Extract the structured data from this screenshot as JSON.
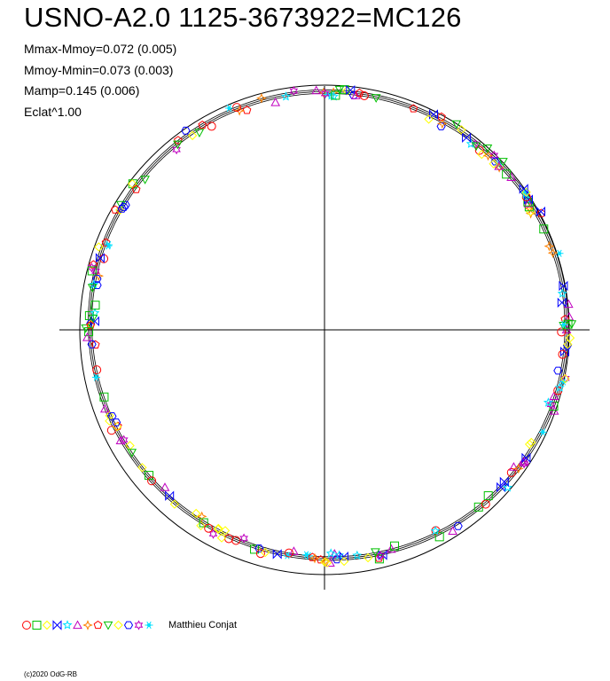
{
  "header": {
    "title": "USNO-A2.0 1125-3673922=MC126",
    "stats": [
      "Mmax-Mmoy=0.072 (0.005)",
      "Mmoy-Mmin=0.073 (0.003)",
      "Mamp=0.145 (0.006)",
      "Eclat^1.00"
    ]
  },
  "chart_data": {
    "type": "scatter",
    "polar": true,
    "title": "USNO-A2.0 1125-3673922=MC126",
    "reference_circle": true,
    "mean_curve": true,
    "series": [
      {
        "name": "Matthieu Conjat",
        "marker_colors": [
          "#ff0000",
          "#00c000",
          "#ffff00",
          "#0000ff",
          "#00e0ff",
          "#c000c0",
          "#ff8000",
          "#ff0000",
          "#ffff00",
          "#0000ff",
          "#c000c0",
          "#00e0ff"
        ]
      }
    ]
  },
  "legend": {
    "symbols": [
      "circle",
      "square",
      "diamond",
      "bowtie",
      "star",
      "triangle",
      "star4",
      "pentagon",
      "triangle-down",
      "diamond",
      "hexagon",
      "star6",
      "asterisk"
    ],
    "colors": [
      "#ff0000",
      "#00c000",
      "#ffff00",
      "#0000ff",
      "#00e0ff",
      "#c000c0",
      "#ff8000",
      "#ff0000",
      "#00c000",
      "#ffff00",
      "#0000ff",
      "#c000c0",
      "#00e0ff"
    ],
    "observer": "Matthieu Conjat"
  },
  "footer": {
    "copyright": "(c)2020 OdG-RB"
  }
}
